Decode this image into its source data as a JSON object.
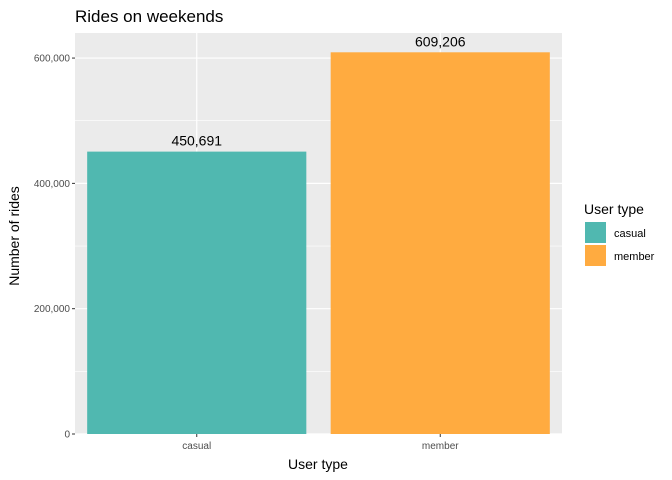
{
  "chart_data": {
    "type": "bar",
    "title": "Rides on weekends",
    "xlabel": "User type",
    "ylabel": "Number of rides",
    "categories": [
      "casual",
      "member"
    ],
    "values": [
      450691,
      609206
    ],
    "data_labels": [
      "450,691",
      "609,206"
    ],
    "colors": [
      "#50b8b0",
      "#ffab40"
    ],
    "ylim": [
      0,
      640000
    ],
    "yticks": [
      0,
      200000,
      400000,
      600000
    ],
    "ytick_labels": [
      "0",
      "200,000",
      "400,000",
      "600,000"
    ],
    "grid": true,
    "legend": {
      "title": "User type",
      "placement": "right",
      "entries": [
        "casual",
        "member"
      ]
    },
    "panel_background": "#ebebeb",
    "grid_color": "#ffffff"
  }
}
